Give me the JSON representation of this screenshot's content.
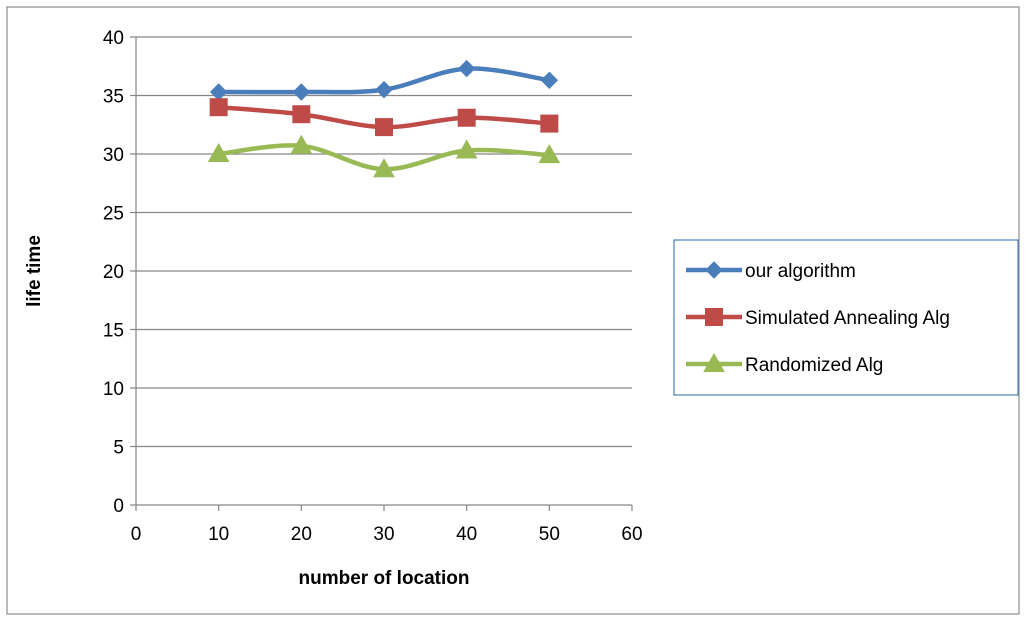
{
  "chart_data": {
    "type": "line",
    "title": "",
    "xlabel": "number of location",
    "ylabel": "life time",
    "xlim": [
      0,
      60
    ],
    "ylim": [
      0,
      40
    ],
    "x_ticks": [
      0,
      10,
      20,
      30,
      40,
      50,
      60
    ],
    "y_ticks": [
      0,
      5,
      10,
      15,
      20,
      25,
      30,
      35,
      40
    ],
    "grid": "horizontal",
    "legend_position": "right",
    "smooth": true,
    "series": [
      {
        "name": "our algorithm",
        "color": "#4a7ebb",
        "marker": "diamond",
        "x": [
          10,
          20,
          30,
          40,
          50
        ],
        "y": [
          35.3,
          35.3,
          35.5,
          37.3,
          36.3
        ]
      },
      {
        "name": "Simulated Annealing Alg",
        "color": "#be4b48",
        "marker": "square",
        "x": [
          10,
          20,
          30,
          40,
          50
        ],
        "y": [
          34.0,
          33.4,
          32.3,
          33.1,
          32.6
        ]
      },
      {
        "name": "Randomized Alg",
        "color": "#98b954",
        "marker": "triangle",
        "x": [
          10,
          20,
          30,
          40,
          50
        ],
        "y": [
          30.0,
          30.7,
          28.7,
          30.3,
          29.9
        ]
      }
    ]
  }
}
